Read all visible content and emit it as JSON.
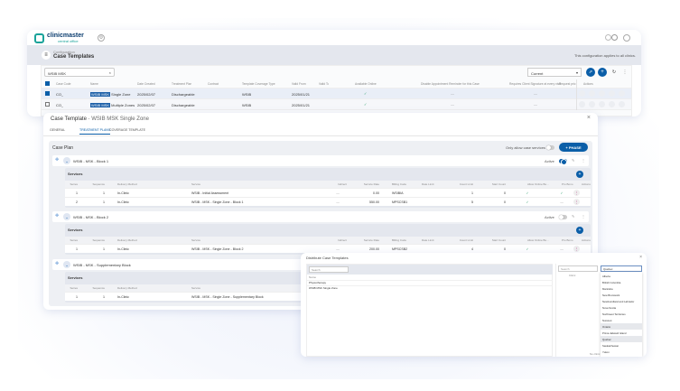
{
  "app": {
    "logo_text": "clinicmaster",
    "logo_sub": "central office",
    "breadcrumb_parent": "Configuration",
    "page_title": "Case Templates",
    "scope_note": "This configuration applies to all clinics.",
    "search_value": "WSIB MSK",
    "filter_value": "Current"
  },
  "list": {
    "columns": [
      "Case Code",
      "Name",
      "Date Created",
      "Treatment Plan",
      "Contract",
      "Template Coverage Type",
      "Valid From",
      "Valid To",
      "Available Online",
      "Disable Appointment Reminder for this Case",
      "Requires Client Signature at every visit",
      "Request pric",
      "Actions"
    ],
    "rows": [
      {
        "code": "CO_",
        "name_hl": "WSIB MSK",
        "name_rest": "Single Zone",
        "date": "2025/02/07",
        "plan": "Dischargeable",
        "contract": "",
        "coverage": "WSIB",
        "valid_from": "2025/01/21",
        "valid_to": "",
        "online": "✓",
        "disable_rem": "—",
        "sig": "—",
        "checked": true
      },
      {
        "code": "CO_",
        "name_hl": "WSIB MSK",
        "name_rest": "Multiple Zones",
        "date": "2025/02/07",
        "plan": "Dischargeable",
        "contract": "",
        "coverage": "WSIB",
        "valid_from": "2025/01/21",
        "valid_to": "",
        "online": "✓",
        "disable_rem": "—",
        "sig": "—",
        "checked": false
      }
    ]
  },
  "modal": {
    "title_prefix": "Case Template",
    "title_name": "WSIB MSK Single Zone",
    "tabs": [
      "GENERAL",
      "TREATMENT PLANS",
      "COVERAGE TEMPLATE"
    ],
    "active_tab": 1,
    "case_plan": "Case Plan",
    "only_allow": "Only allow case services",
    "phase_btn": "PHASE",
    "active_label": "Active",
    "services_label": "Services",
    "svc_columns": [
      "Series",
      "Sequence",
      "Delivery Method",
      "Service",
      "Indirect",
      "Service Rate",
      "Billing Code",
      "Date Limit",
      "Count Limit",
      "Start Count",
      "Allow Online Bo...",
      "Pro Bono",
      "Actions"
    ],
    "blocks": [
      {
        "name": "WSIB - MSK - Block 1",
        "active": true,
        "rows": [
          [
            "1",
            "1",
            "In-Clinic",
            "WSIB - Initial Assessment",
            "—",
            "0.00",
            "WSIBIA",
            "",
            "1",
            "0",
            "✓",
            "✓"
          ],
          [
            "2",
            "1",
            "In-Clinic",
            "WSIB - MSK - Single Zone - Block 1",
            "—",
            "550.00",
            "MPSCSB1",
            "",
            "5",
            "0",
            "✓",
            "—"
          ]
        ]
      },
      {
        "name": "WSIB - MSK - Block 2",
        "active": false,
        "rows": [
          [
            "1",
            "1",
            "In-Clinic",
            "WSIB - MSK - Single Zone - Block 2",
            "—",
            "200.00",
            "MPSCSB2",
            "",
            "4",
            "0",
            "✓",
            "—"
          ]
        ]
      },
      {
        "name": "WSIB - MSK - Supplementary Block",
        "active": null,
        "rows": [
          [
            "1",
            "1",
            "In-Clinic",
            "WSIB - MSK - Single Zone - Supplementary Block",
            "",
            "",
            "",
            "",
            "",
            "",
            "",
            ""
          ]
        ]
      }
    ]
  },
  "distribute": {
    "title": "Distribute Case Templates",
    "search_placeholder": "Search",
    "name_header": "Name",
    "items": [
      "Physiotherapy",
      "WSIB MSK Single Zone"
    ],
    "right_search_placeholder": "Search",
    "right_header": "Clinic",
    "province_value": "Quebec",
    "provinces": [
      "Alberta",
      "British Columbia",
      "Manitoba",
      "New Brunswick",
      "Newfoundland and Labrador",
      "Nova Scotia",
      "Northwest Territories",
      "Nunavut",
      "Ontario",
      "Prince Edward Island",
      "Quebec",
      "Saskatchewan",
      "Yukon"
    ],
    "highlighted": [
      "Ontario",
      "Quebec"
    ],
    "empty_note": "No clinic f..."
  },
  "colors": {
    "accent": "#0a5ea8",
    "check": "#2a9d6a",
    "logo": "#1aa39a"
  }
}
